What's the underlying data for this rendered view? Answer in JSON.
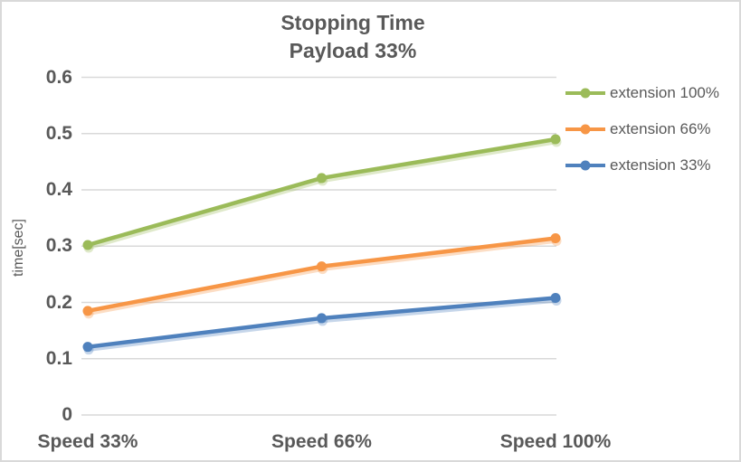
{
  "chart_data": {
    "type": "line",
    "title": "Stopping Time",
    "subtitle": "Payload 33%",
    "categories": [
      "Speed 33%",
      "Speed 66%",
      "Speed 100%"
    ],
    "series": [
      {
        "name": "extension 100%",
        "color": "#9BBB59",
        "values": [
          0.302,
          0.421,
          0.49
        ]
      },
      {
        "name": "extension 66%",
        "color": "#F79646",
        "values": [
          0.185,
          0.264,
          0.314
        ]
      },
      {
        "name": "extension 33%",
        "color": "#4F81BD",
        "values": [
          0.121,
          0.172,
          0.208
        ]
      }
    ],
    "xlabel": "",
    "ylabel": "time[sec]",
    "ylim": [
      0,
      0.6
    ],
    "ytick_labels": [
      "0.6",
      "0.5",
      "0.4",
      "0.3",
      "0.2",
      "0.1",
      "0"
    ],
    "grid": true,
    "legend_position": "right",
    "colors": {
      "text": "#595959",
      "gridline": "#D9D9D9",
      "border": "#D9D9D9",
      "background": "#FFFFFF"
    }
  }
}
